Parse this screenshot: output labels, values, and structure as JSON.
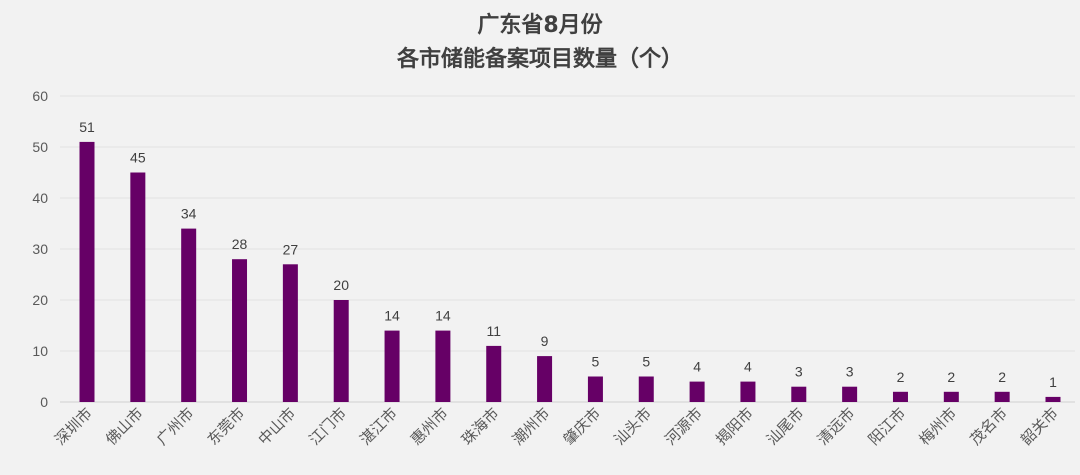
{
  "chart_data": {
    "type": "bar",
    "title": [
      "广东省8月份",
      "各市储能备案项目数量（个）"
    ],
    "xlabel": "",
    "ylabel": "",
    "ylim": [
      0,
      60
    ],
    "yticks": [
      0,
      10,
      20,
      30,
      40,
      50,
      60
    ],
    "grid": true,
    "categories": [
      "深圳市",
      "佛山市",
      "广州市",
      "东莞市",
      "中山市",
      "江门市",
      "湛江市",
      "惠州市",
      "珠海市",
      "潮州市",
      "肇庆市",
      "汕头市",
      "河源市",
      "揭阳市",
      "汕尾市",
      "清远市",
      "阳江市",
      "梅州市",
      "茂名市",
      "韶关市"
    ],
    "values": [
      51,
      45,
      34,
      28,
      27,
      20,
      14,
      14,
      11,
      9,
      5,
      5,
      4,
      4,
      3,
      3,
      2,
      2,
      2,
      1
    ],
    "bar_color": "#660066"
  }
}
